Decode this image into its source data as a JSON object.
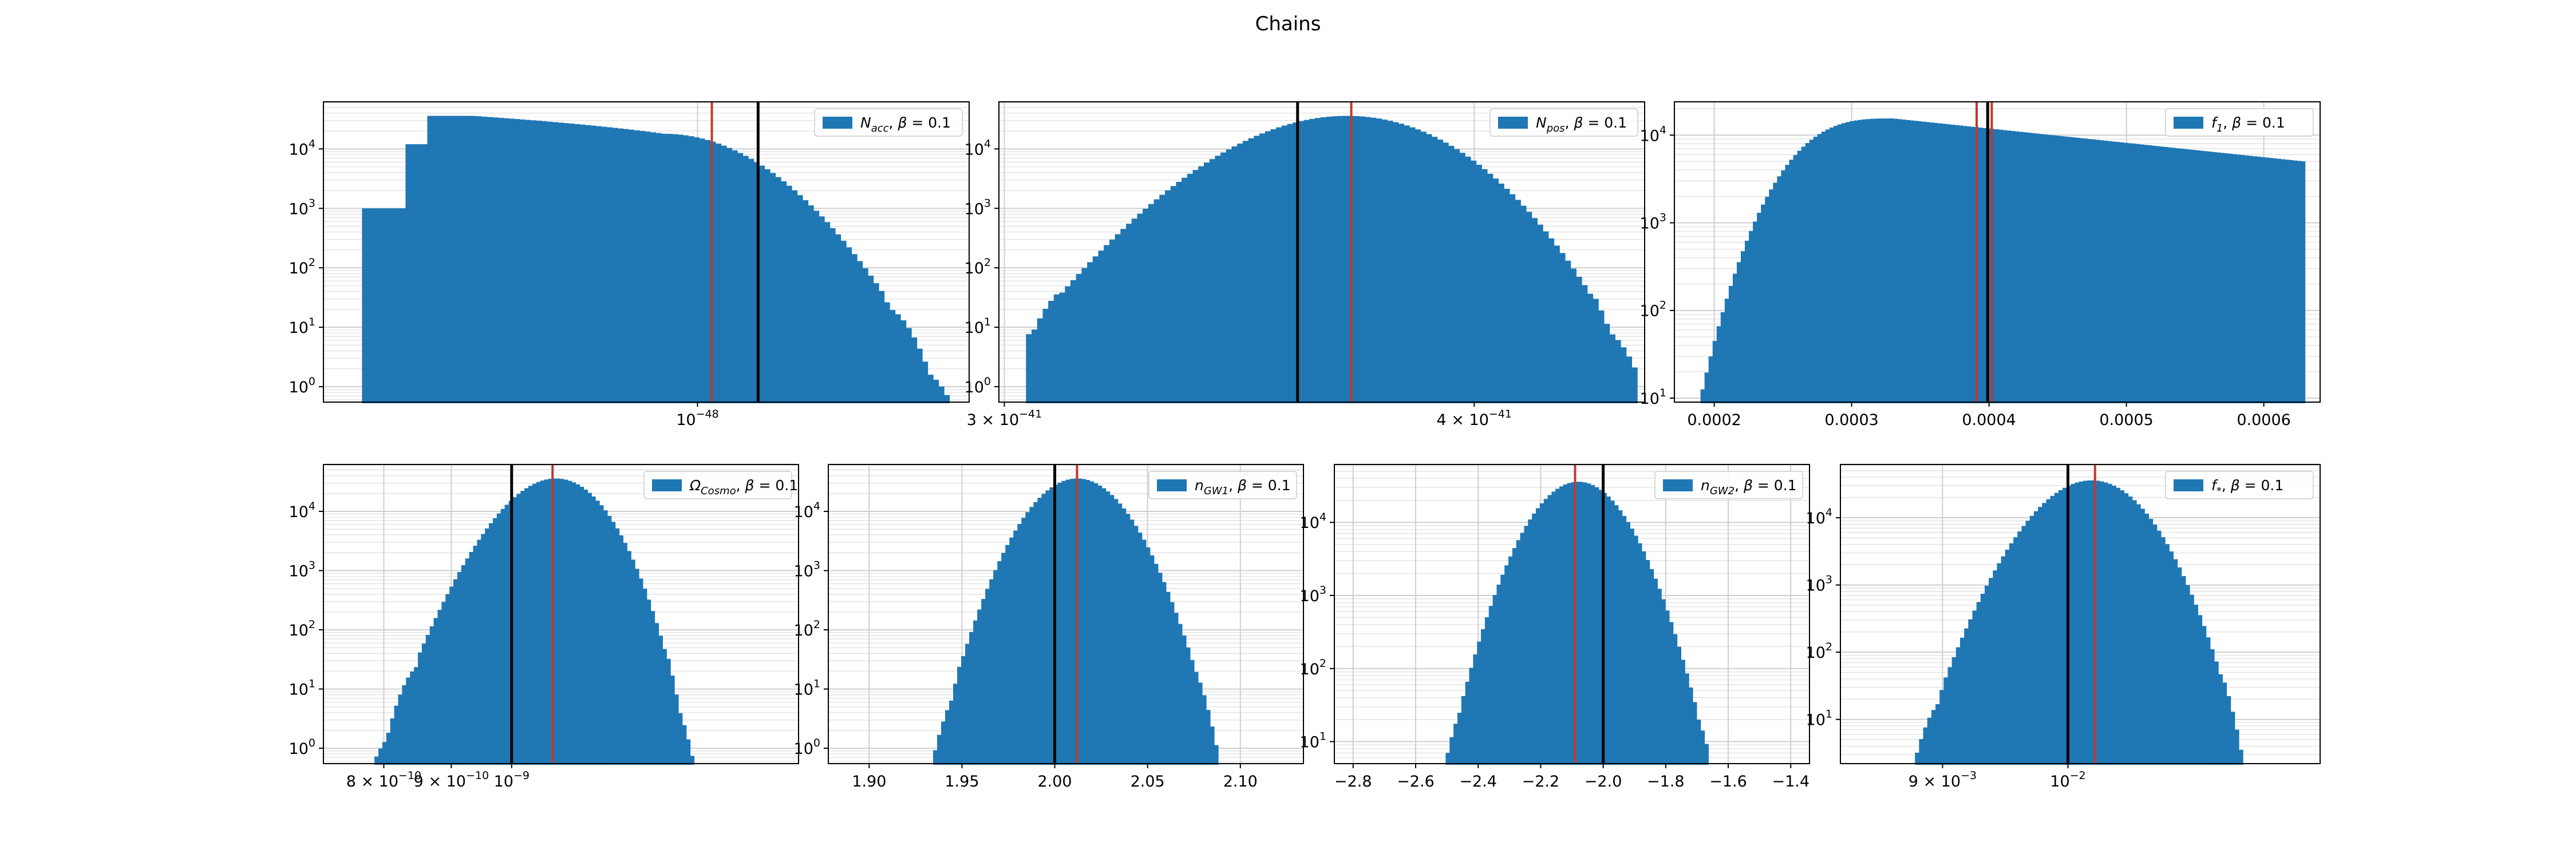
{
  "figure": {
    "title": "Chains"
  },
  "colors": {
    "bar": "#1f77b4",
    "true_value": "#000000",
    "estimate": "#c0392b"
  },
  "chart_data": [
    {
      "type": "histogram",
      "legend": "N_acc, β = 0.1",
      "legend_sym": "N",
      "legend_sub": "acc",
      "beta": "0.1",
      "xscale": "log",
      "xlim": [
        3.6e-49,
        2.1e-48
      ],
      "x_ticks": [
        {
          "value": 1e-48,
          "mant": "",
          "exp": "−48"
        }
      ],
      "yscale": "log",
      "ylim": [
        0.55,
        62000
      ],
      "y_ticks": [
        {
          "value": 1,
          "exp": "0"
        },
        {
          "value": 10,
          "exp": "1"
        },
        {
          "value": 100,
          "exp": "2"
        },
        {
          "value": 1000,
          "exp": "3"
        },
        {
          "value": 10000,
          "exp": "4"
        }
      ],
      "bins": {
        "start": 4e-49,
        "end": 2.05e-48,
        "scale": "log",
        "shape": "ramp",
        "peak": 36000,
        "plateau": [
          0.18,
          0.5
        ]
      },
      "first_bins": [
        1000,
        1000,
        12000
      ],
      "sparse_tail": true,
      "vlines": [
        {
          "x": 1.04e-48,
          "color": "estimate"
        },
        {
          "x": 1.18e-48,
          "color": "true_value"
        }
      ],
      "legend_pos": "upper right"
    },
    {
      "type": "histogram",
      "legend": "N_pos, β = 0.1",
      "legend_sym": "N",
      "legend_sub": "pos",
      "beta": "0.1",
      "xscale": "log",
      "xlim": [
        2.99e-41,
        4.44e-41
      ],
      "x_ticks": [
        {
          "value": 3e-41,
          "mant": "3",
          "exp": "−41"
        },
        {
          "value": 4e-41,
          "mant": "4",
          "exp": "−41"
        }
      ],
      "yscale": "log",
      "ylim": [
        0.55,
        62000
      ],
      "y_ticks": [
        {
          "value": 1,
          "exp": "0"
        },
        {
          "value": 10,
          "exp": "1"
        },
        {
          "value": 100,
          "exp": "2"
        },
        {
          "value": 1000,
          "exp": "3"
        },
        {
          "value": 10000,
          "exp": "4"
        }
      ],
      "bins": {
        "start": 3.04e-41,
        "end": 4.42e-41,
        "scale": "log",
        "shape": "gauss",
        "peak": 36000,
        "mu": 3.7e-41,
        "sigma": 1.6e-42
      },
      "sparse_tail": true,
      "vlines": [
        {
          "x": 3.59e-41,
          "color": "true_value"
        },
        {
          "x": 3.71e-41,
          "color": "estimate"
        }
      ],
      "legend_pos": "upper right"
    },
    {
      "type": "histogram",
      "legend": "f_1, β = 0.1",
      "legend_sym": "f",
      "legend_sub": "1",
      "beta": "0.1",
      "xscale": "linear",
      "xlim": [
        0.000171,
        0.000641
      ],
      "x_ticks": [
        {
          "value": 0.0002,
          "label": "0.0002"
        },
        {
          "value": 0.0003,
          "label": "0.0003"
        },
        {
          "value": 0.0004,
          "label": "0.0004"
        },
        {
          "value": 0.0005,
          "label": "0.0005"
        },
        {
          "value": 0.0006,
          "label": "0.0006"
        }
      ],
      "yscale": "log",
      "ylim": [
        9,
        24000
      ],
      "y_ticks": [
        {
          "value": 10,
          "exp": "1"
        },
        {
          "value": 100,
          "exp": "2"
        },
        {
          "value": 1000,
          "exp": "3"
        },
        {
          "value": 10000,
          "exp": "4"
        }
      ],
      "bins": {
        "start": 0.00019,
        "end": 0.00063,
        "scale": "linear",
        "shape": "rise_decay",
        "peak": 15500,
        "rise_end": 0.00033,
        "floor": 10,
        "tail": 5000
      },
      "vlines": [
        {
          "x": 0.000391,
          "color": "estimate"
        },
        {
          "x": 0.000399,
          "color": "true_value"
        },
        {
          "x": 0.000402,
          "color": "estimate"
        }
      ],
      "legend_pos": "upper right"
    },
    {
      "type": "histogram",
      "legend": "Ω_Cosmo, β = 0.1",
      "legend_sym": "Ω",
      "legend_sub": "Cosmo",
      "beta": "0.1",
      "xscale": "log",
      "xlim": [
        7.2e-10,
        1.65e-09
      ],
      "x_ticks": [
        {
          "value": 8e-10,
          "mant": "8",
          "exp": "−10"
        },
        {
          "value": 9e-10,
          "mant": "9",
          "exp": "−10"
        },
        {
          "value": 1e-09,
          "mant": "",
          "exp": "−9"
        }
      ],
      "yscale": "log",
      "ylim": [
        0.55,
        62000
      ],
      "y_ticks": [
        {
          "value": 1,
          "exp": "0"
        },
        {
          "value": 10,
          "exp": "1"
        },
        {
          "value": 100,
          "exp": "2"
        },
        {
          "value": 1000,
          "exp": "3"
        },
        {
          "value": 10000,
          "exp": "4"
        }
      ],
      "bins": {
        "start": 7.5e-10,
        "end": 1.6e-09,
        "scale": "log",
        "shape": "gauss",
        "peak": 36000,
        "mu": 1.08e-09,
        "sigma": 6.2e-11
      },
      "sparse_tail": true,
      "vlines": [
        {
          "x": 1e-09,
          "color": "true_value"
        },
        {
          "x": 1.074e-09,
          "color": "estimate"
        }
      ],
      "legend_pos": "upper right"
    },
    {
      "type": "histogram",
      "legend": "n_GW1, β = 0.1",
      "legend_sym": "n",
      "legend_sub": "GW1",
      "beta": "0.1",
      "xscale": "linear",
      "xlim": [
        1.878,
        2.134
      ],
      "x_ticks": [
        {
          "value": 1.9,
          "label": "1.90"
        },
        {
          "value": 1.95,
          "label": "1.95"
        },
        {
          "value": 2.0,
          "label": "2.00"
        },
        {
          "value": 2.05,
          "label": "2.05"
        },
        {
          "value": 2.1,
          "label": "2.10"
        }
      ],
      "yscale": "log",
      "ylim": [
        0.55,
        62000
      ],
      "y_ticks": [
        {
          "value": 1,
          "exp": "0"
        },
        {
          "value": 10,
          "exp": "1"
        },
        {
          "value": 100,
          "exp": "2"
        },
        {
          "value": 1000,
          "exp": "3"
        },
        {
          "value": 10000,
          "exp": "4"
        }
      ],
      "bins": {
        "start": 1.889,
        "end": 2.127,
        "scale": "linear",
        "shape": "gauss",
        "peak": 36000,
        "mu": 2.012,
        "sigma": 0.0165
      },
      "sparse_tail": true,
      "vlines": [
        {
          "x": 2.0,
          "color": "true_value"
        },
        {
          "x": 2.012,
          "color": "estimate"
        }
      ],
      "legend_pos": "upper right"
    },
    {
      "type": "histogram",
      "legend": "n_GW2, β = 0.1",
      "legend_sym": "n",
      "legend_sub": "GW2",
      "beta": "0.1",
      "xscale": "linear",
      "xlim": [
        -2.86,
        -1.34
      ],
      "x_ticks": [
        {
          "value": -2.8,
          "label": "−2.8"
        },
        {
          "value": -2.6,
          "label": "−2.6"
        },
        {
          "value": -2.4,
          "label": "−2.4"
        },
        {
          "value": -2.2,
          "label": "−2.2"
        },
        {
          "value": -2.0,
          "label": "−2.0"
        },
        {
          "value": -1.8,
          "label": "−1.8"
        },
        {
          "value": -1.6,
          "label": "−1.6"
        },
        {
          "value": -1.4,
          "label": "−1.4"
        }
      ],
      "yscale": "log",
      "ylim": [
        5,
        62000
      ],
      "y_ticks": [
        {
          "value": 10,
          "exp": "1"
        },
        {
          "value": 100,
          "exp": "2"
        },
        {
          "value": 1000,
          "exp": "3"
        },
        {
          "value": 10000,
          "exp": "4"
        }
      ],
      "bins": {
        "start": -2.78,
        "end": -1.4,
        "scale": "linear",
        "shape": "gauss",
        "peak": 36000,
        "mu": -2.08,
        "sigma": 0.1
      },
      "sparse_tail": true,
      "vlines": [
        {
          "x": -2.09,
          "color": "estimate"
        },
        {
          "x": -2.0,
          "color": "true_value"
        }
      ],
      "legend_pos": "upper right"
    },
    {
      "type": "histogram",
      "legend": "f_*, β = 0.1",
      "legend_sym": "f",
      "legend_sub": "*",
      "beta": "0.1",
      "xscale": "log",
      "xlim": [
        0.00826,
        0.01236
      ],
      "x_ticks": [
        {
          "value": 0.009,
          "mant": "9",
          "exp": "−3"
        },
        {
          "value": 0.01,
          "mant": "",
          "exp": "−2"
        }
      ],
      "yscale": "log",
      "ylim": [
        2.2,
        62000
      ],
      "y_ticks": [
        {
          "value": 10,
          "exp": "1"
        },
        {
          "value": 100,
          "exp": "2"
        },
        {
          "value": 1000,
          "exp": "3"
        },
        {
          "value": 10000,
          "exp": "4"
        }
      ],
      "bins": {
        "start": 0.00838,
        "end": 0.01224,
        "scale": "log",
        "shape": "gauss",
        "peak": 36000,
        "mu": 0.0102,
        "sigma": 0.00032
      },
      "sparse_tail": true,
      "vlines": [
        {
          "x": 0.01,
          "color": "true_value"
        },
        {
          "x": 0.01023,
          "color": "estimate"
        }
      ],
      "legend_pos": "upper right"
    }
  ]
}
